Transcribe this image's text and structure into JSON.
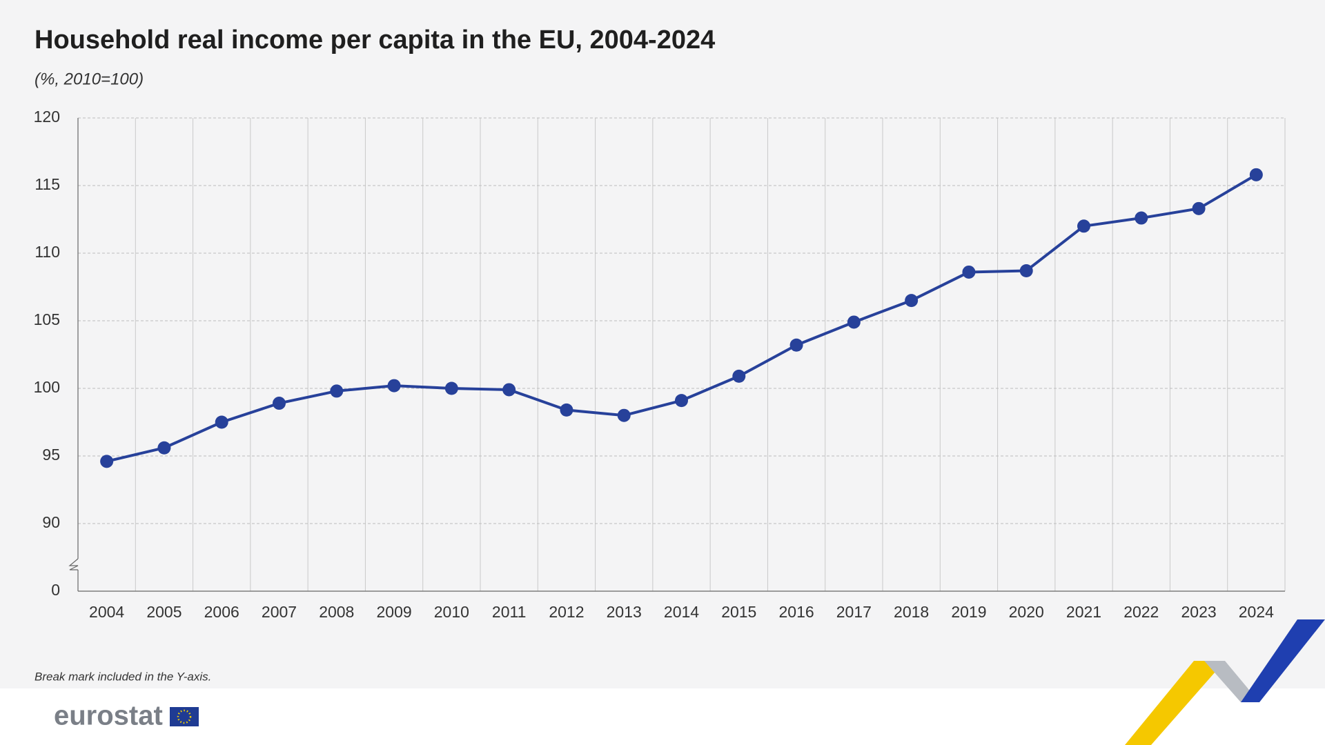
{
  "chart_data": {
    "type": "line",
    "title": "Household real income per capita in the EU, 2004-2024",
    "subtitle": "(%, 2010=100)",
    "note": "Break mark included in the Y-axis.",
    "source": "eurostat",
    "categories": [
      "2004",
      "2005",
      "2006",
      "2007",
      "2008",
      "2009",
      "2010",
      "2011",
      "2012",
      "2013",
      "2014",
      "2015",
      "2016",
      "2017",
      "2018",
      "2019",
      "2020",
      "2021",
      "2022",
      "2023",
      "2024"
    ],
    "values": [
      94.6,
      95.6,
      97.5,
      98.9,
      99.8,
      100.2,
      100.0,
      99.9,
      98.4,
      98.0,
      99.1,
      100.9,
      103.2,
      104.9,
      106.5,
      108.6,
      108.7,
      112.0,
      112.6,
      113.3,
      115.8
    ],
    "color": "#27419a",
    "ylim": [
      0,
      120
    ],
    "yticks": [
      0,
      90,
      95,
      100,
      105,
      110,
      115,
      120
    ],
    "axis_break": true,
    "grid": true
  }
}
